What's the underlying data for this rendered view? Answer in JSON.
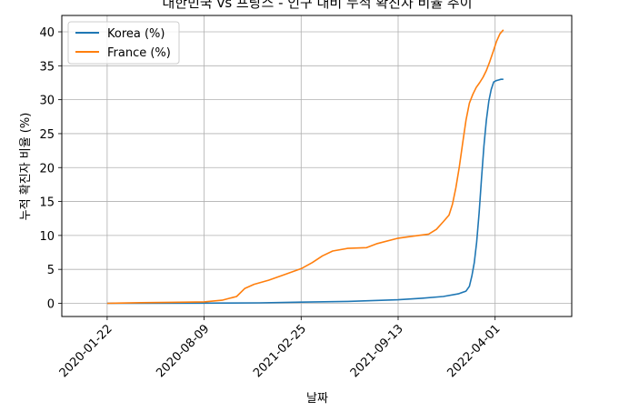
{
  "chart_data": {
    "type": "line",
    "title": "대한민국 vs 프랑스 - 인구 대비 누적 확진자 비율 추이",
    "xlabel": "날짜",
    "ylabel": "누적 확진자 비율 (%)",
    "ylim": [
      0,
      42
    ],
    "yticks": [
      0,
      5,
      10,
      15,
      20,
      25,
      30,
      35,
      40
    ],
    "xticks": [
      "2020-01-22",
      "2020-08-09",
      "2021-02-25",
      "2021-09-13",
      "2022-04-01"
    ],
    "grid": true,
    "legend_position": "top-left",
    "series": [
      {
        "name": "Korea (%)",
        "color": "#1f77b4",
        "x": [
          "2020-01-22",
          "2020-04-01",
          "2020-08-09",
          "2020-12-01",
          "2021-02-25",
          "2021-06-01",
          "2021-09-13",
          "2021-11-01",
          "2021-12-15",
          "2022-01-15",
          "2022-01-31",
          "2022-02-07",
          "2022-02-12",
          "2022-02-17",
          "2022-02-22",
          "2022-02-27",
          "2022-03-04",
          "2022-03-09",
          "2022-03-14",
          "2022-03-19",
          "2022-03-24",
          "2022-03-29",
          "2022-04-03",
          "2022-04-08",
          "2022-04-13",
          "2022-04-18"
        ],
        "values": [
          0,
          0.02,
          0.03,
          0.07,
          0.17,
          0.28,
          0.52,
          0.75,
          1.0,
          1.4,
          1.8,
          2.5,
          4.0,
          6.0,
          9.0,
          13.3,
          18.5,
          23.2,
          27.0,
          29.8,
          31.5,
          32.6,
          32.8,
          32.9,
          33.0,
          33.0
        ]
      },
      {
        "name": "France (%)",
        "color": "#ff7f0e",
        "x": [
          "2020-01-22",
          "2020-04-01",
          "2020-06-01",
          "2020-08-09",
          "2020-09-15",
          "2020-10-15",
          "2020-11-01",
          "2020-11-20",
          "2020-12-20",
          "2021-01-20",
          "2021-02-25",
          "2021-03-20",
          "2021-04-10",
          "2021-05-01",
          "2021-06-01",
          "2021-07-10",
          "2021-08-01",
          "2021-09-13",
          "2021-10-15",
          "2021-11-15",
          "2021-12-01",
          "2021-12-15",
          "2021-12-27",
          "2022-01-03",
          "2022-01-10",
          "2022-01-17",
          "2022-01-24",
          "2022-01-31",
          "2022-02-07",
          "2022-02-14",
          "2022-02-21",
          "2022-02-28",
          "2022-03-07",
          "2022-03-14",
          "2022-03-21",
          "2022-03-28",
          "2022-04-04",
          "2022-04-11",
          "2022-04-18"
        ],
        "values": [
          0,
          0.1,
          0.15,
          0.22,
          0.45,
          1.0,
          2.2,
          2.8,
          3.4,
          4.2,
          5.1,
          6.0,
          7.0,
          7.7,
          8.1,
          8.2,
          8.8,
          9.6,
          9.9,
          10.2,
          10.9,
          12.0,
          13.0,
          14.6,
          17.0,
          20.0,
          23.6,
          27.0,
          29.5,
          30.8,
          31.8,
          32.5,
          33.3,
          34.3,
          35.6,
          37.1,
          38.6,
          39.7,
          40.3
        ]
      }
    ]
  }
}
